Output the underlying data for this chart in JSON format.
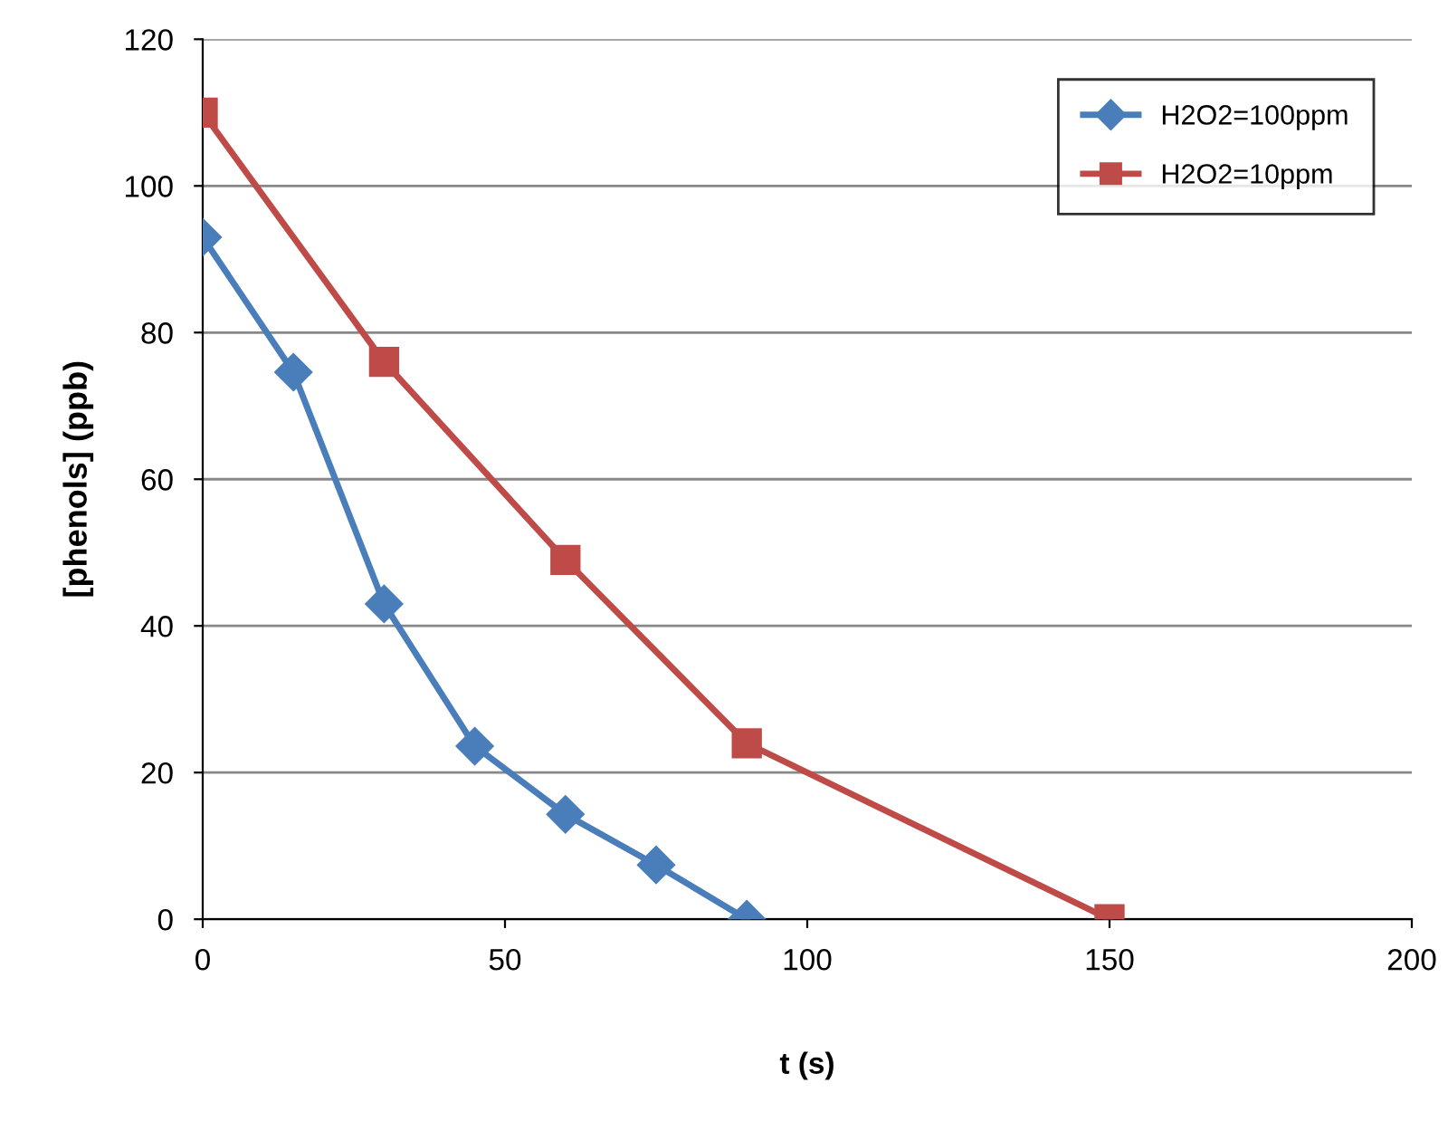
{
  "chart_data": {
    "type": "line",
    "xlabel": "t (s)",
    "ylabel": "[phenols] (ppb)",
    "xlim": [
      0,
      200
    ],
    "xticks": [
      0,
      50,
      100,
      150,
      200
    ],
    "ylim": [
      0,
      120
    ],
    "yticks": [
      0,
      20,
      40,
      60,
      80,
      100,
      120
    ],
    "grid": "y",
    "legend": "top right",
    "line_style": "solid",
    "series": [
      {
        "name": "H2O2=100ppm",
        "color": "#4a7ebb",
        "marker": "diamond",
        "x": [
          0,
          15,
          30,
          45,
          60,
          75,
          90
        ],
        "values": [
          93,
          74.6,
          43,
          23.6,
          14.3,
          7.4,
          0
        ]
      },
      {
        "name": "H2O2=10ppm",
        "color": "#be4b48",
        "marker": "square",
        "x": [
          0,
          30,
          60,
          90,
          150
        ],
        "values": [
          110,
          76,
          49,
          24,
          0
        ]
      }
    ]
  }
}
